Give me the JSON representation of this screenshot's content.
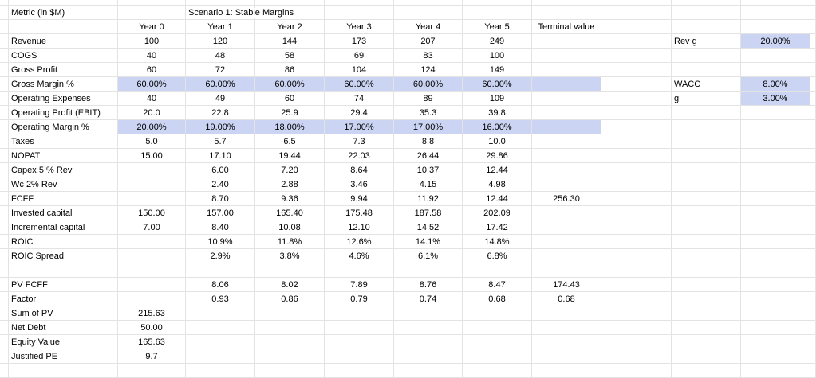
{
  "colors": {
    "bg": "#ffffff",
    "text": "#000000",
    "gridline": "#e3e3e3",
    "highlight": "#cbd5f3"
  },
  "sheet": {
    "metric_header": "Metric (in $M)",
    "scenario_title": "Scenario 1: Stable Margins",
    "year_headers": [
      "Year 0",
      "Year 1",
      "Year 2",
      "Year 3",
      "Year 4",
      "Year 5",
      "Terminal value"
    ],
    "rows": [
      {
        "label": "Revenue",
        "values": [
          "100",
          "120",
          "144",
          "173",
          "207",
          "249",
          ""
        ]
      },
      {
        "label": "COGS",
        "values": [
          "40",
          "48",
          "58",
          "69",
          "83",
          "100",
          ""
        ]
      },
      {
        "label": "Gross Profit",
        "values": [
          "60",
          "72",
          "86",
          "104",
          "124",
          "149",
          ""
        ]
      },
      {
        "label": "Gross Margin %",
        "values": [
          "60.00%",
          "60.00%",
          "60.00%",
          "60.00%",
          "60.00%",
          "60.00%",
          ""
        ],
        "highlight": true
      },
      {
        "label": "Operating Expenses",
        "values": [
          "40",
          "49",
          "60",
          "74",
          "89",
          "109",
          ""
        ]
      },
      {
        "label": "Operating Profit (EBIT)",
        "values": [
          "20.0",
          "22.8",
          "25.9",
          "29.4",
          "35.3",
          "39.8",
          ""
        ]
      },
      {
        "label": "Operating Margin %",
        "values": [
          "20.00%",
          "19.00%",
          "18.00%",
          "17.00%",
          "17.00%",
          "16.00%",
          ""
        ],
        "highlight": true
      },
      {
        "label": "Taxes",
        "values": [
          "5.0",
          "5.7",
          "6.5",
          "7.3",
          "8.8",
          "10.0",
          ""
        ]
      },
      {
        "label": "NOPAT",
        "values": [
          "15.00",
          "17.10",
          "19.44",
          "22.03",
          "26.44",
          "29.86",
          ""
        ]
      },
      {
        "label": "Capex 5 % Rev",
        "values": [
          "",
          "6.00",
          "7.20",
          "8.64",
          "10.37",
          "12.44",
          ""
        ]
      },
      {
        "label": "Wc 2% Rev",
        "values": [
          "",
          "2.40",
          "2.88",
          "3.46",
          "4.15",
          "4.98",
          ""
        ]
      },
      {
        "label": "FCFF",
        "values": [
          "",
          "8.70",
          "9.36",
          "9.94",
          "11.92",
          "12.44",
          "256.30"
        ]
      },
      {
        "label": "Invested capital",
        "values": [
          "150.00",
          "157.00",
          "165.40",
          "175.48",
          "187.58",
          "202.09",
          ""
        ]
      },
      {
        "label": "Incremental capital",
        "values": [
          "7.00",
          "8.40",
          "10.08",
          "12.10",
          "14.52",
          "17.42",
          ""
        ]
      },
      {
        "label": "ROIC",
        "values": [
          "",
          "10.9%",
          "11.8%",
          "12.6%",
          "14.1%",
          "14.8%",
          ""
        ]
      },
      {
        "label": "ROIC Spread",
        "values": [
          "",
          "2.9%",
          "3.8%",
          "4.6%",
          "6.1%",
          "6.8%",
          ""
        ]
      },
      {
        "label": "",
        "values": [
          "",
          "",
          "",
          "",
          "",
          "",
          ""
        ]
      },
      {
        "label": "PV FCFF",
        "values": [
          "",
          "8.06",
          "8.02",
          "7.89",
          "8.76",
          "8.47",
          "174.43"
        ]
      },
      {
        "label": "Factor",
        "values": [
          "",
          "0.93",
          "0.86",
          "0.79",
          "0.74",
          "0.68",
          "0.68"
        ]
      },
      {
        "label": "Sum of PV",
        "values": [
          "215.63",
          "",
          "",
          "",
          "",
          "",
          ""
        ]
      },
      {
        "label": "Net Debt",
        "values": [
          "50.00",
          "",
          "",
          "",
          "",
          "",
          ""
        ]
      },
      {
        "label": "Equity Value",
        "values": [
          "165.63",
          "",
          "",
          "",
          "",
          "",
          ""
        ]
      },
      {
        "label": "Justified PE",
        "values": [
          "9.7",
          "",
          "",
          "",
          "",
          "",
          ""
        ]
      }
    ],
    "assumptions": [
      {
        "label": "Rev g",
        "value": "20.00%",
        "row_index": 0
      },
      {
        "label": "WACC",
        "value": "8.00%",
        "row_index": 3
      },
      {
        "label": "g",
        "value": "3.00%",
        "row_index": 4
      }
    ]
  }
}
